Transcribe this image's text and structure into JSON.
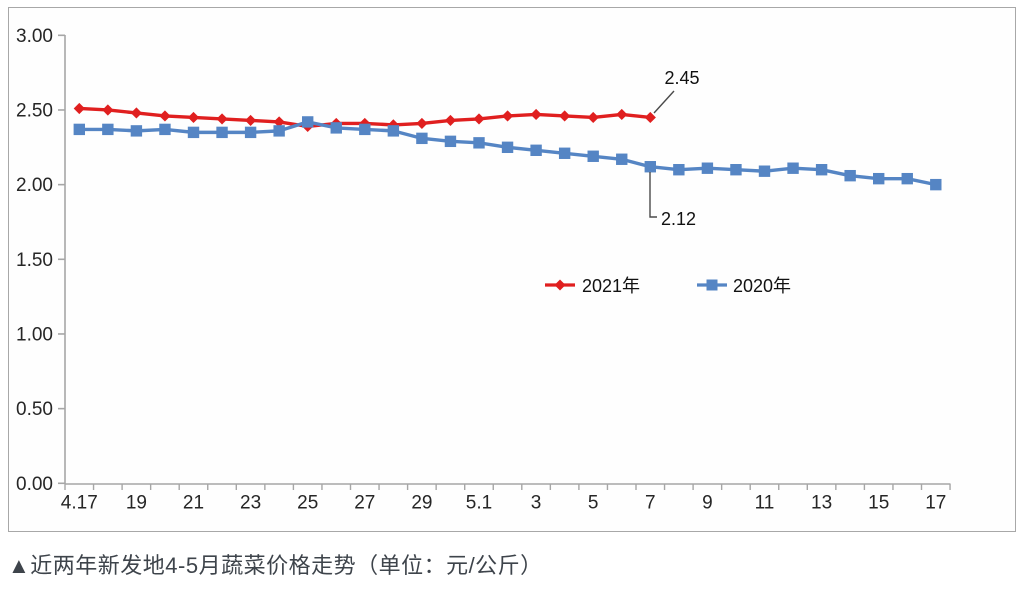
{
  "caption": {
    "text": "▲近两年新发地4-5月蔬菜价格走势（单位：元/公斤）"
  },
  "colors": {
    "series_2021": "#e01f1f",
    "series_2020": "#5585c4",
    "axis": "#a6a6a6",
    "tick_text": "#262626",
    "annotation_line": "#4a4a4a",
    "frame_border": "#a8a8a8"
  },
  "chart_data": {
    "type": "line",
    "title": "近两年新发地4-5月蔬菜价格走势",
    "unit": "元/公斤",
    "grid": false,
    "legend_position": "center-middle",
    "categories": [
      "4.17",
      "4.18",
      "4.19",
      "4.20",
      "4.21",
      "4.22",
      "4.23",
      "4.24",
      "4.25",
      "4.26",
      "4.27",
      "4.28",
      "4.29",
      "4.30",
      "5.1",
      "5.2",
      "5.3",
      "5.4",
      "5.5",
      "5.6",
      "5.7",
      "5.8",
      "5.9",
      "5.10",
      "5.11",
      "5.12",
      "5.13",
      "5.14",
      "5.15",
      "5.16",
      "5.17"
    ],
    "series": [
      {
        "name": "2021年",
        "marker": "diamond",
        "color_key": "series_2021",
        "values": [
          2.51,
          2.5,
          2.48,
          2.46,
          2.45,
          2.44,
          2.43,
          2.42,
          2.39,
          2.41,
          2.41,
          2.4,
          2.41,
          2.43,
          2.44,
          2.46,
          2.47,
          2.46,
          2.45,
          2.47,
          2.45,
          null,
          null,
          null,
          null,
          null,
          null,
          null,
          null,
          null,
          null
        ]
      },
      {
        "name": "2020年",
        "marker": "square",
        "color_key": "series_2020",
        "values": [
          2.37,
          2.37,
          2.36,
          2.37,
          2.35,
          2.35,
          2.35,
          2.36,
          2.42,
          2.38,
          2.37,
          2.36,
          2.31,
          2.29,
          2.28,
          2.25,
          2.23,
          2.21,
          2.19,
          2.17,
          2.12,
          2.1,
          2.11,
          2.1,
          2.09,
          2.11,
          2.1,
          2.06,
          2.04,
          2.04,
          2.0
        ]
      }
    ],
    "y_axis": {
      "min": 0,
      "max": 3,
      "ticks": [
        {
          "v": 3.0,
          "label": "3.00"
        },
        {
          "v": 2.5,
          "label": "2.50"
        },
        {
          "v": 2.0,
          "label": "2.00"
        },
        {
          "v": 1.5,
          "label": "1.50"
        },
        {
          "v": 1.0,
          "label": "1.00"
        },
        {
          "v": 0.5,
          "label": "0.50"
        },
        {
          "v": 0.0,
          "label": "0.00"
        }
      ]
    },
    "x_axis": {
      "ticks": [
        {
          "i": 0,
          "label": "4.17"
        },
        {
          "i": 2,
          "label": "19"
        },
        {
          "i": 4,
          "label": "21"
        },
        {
          "i": 6,
          "label": "23"
        },
        {
          "i": 8,
          "label": "25"
        },
        {
          "i": 10,
          "label": "27"
        },
        {
          "i": 12,
          "label": "29"
        },
        {
          "i": 14,
          "label": "5.1"
        },
        {
          "i": 16,
          "label": "3"
        },
        {
          "i": 18,
          "label": "5"
        },
        {
          "i": 20,
          "label": "7"
        },
        {
          "i": 22,
          "label": "9"
        },
        {
          "i": 24,
          "label": "11"
        },
        {
          "i": 26,
          "label": "13"
        },
        {
          "i": 28,
          "label": "15"
        },
        {
          "i": 30,
          "label": "17"
        }
      ]
    },
    "annotations": [
      {
        "text": "2.45",
        "series": "2021年",
        "category": "5.7",
        "value": 2.45
      },
      {
        "text": "2.12",
        "series": "2020年",
        "category": "5.7",
        "value": 2.12
      }
    ]
  }
}
